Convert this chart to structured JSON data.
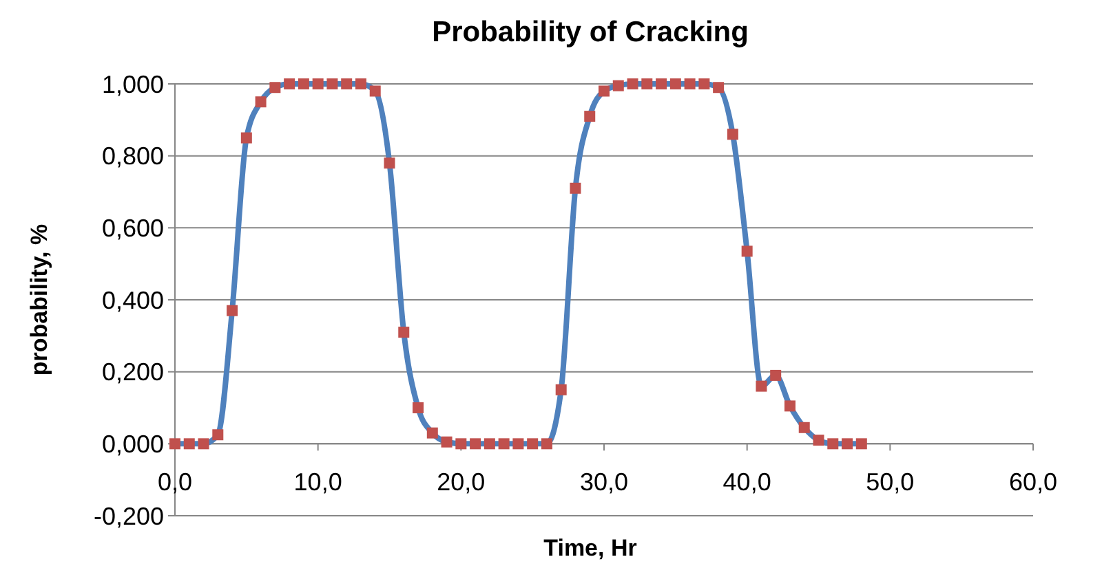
{
  "chart_data": {
    "type": "line",
    "title": "Probability of Cracking",
    "xlabel": "Time, Hr",
    "ylabel": "probability, %",
    "x": [
      0,
      1,
      2,
      3,
      4,
      5,
      6,
      7,
      8,
      9,
      10,
      11,
      12,
      13,
      14,
      15,
      16,
      17,
      18,
      19,
      20,
      21,
      22,
      23,
      24,
      25,
      26,
      27,
      28,
      29,
      30,
      31,
      32,
      33,
      34,
      35,
      36,
      37,
      38,
      39,
      40,
      41,
      42,
      43,
      44,
      45,
      46,
      47,
      48
    ],
    "series": [
      {
        "color": "#4f81bd",
        "marker": "none",
        "values": [
          0,
          0,
          0,
          0.025,
          0.37,
          0.85,
          0.95,
          0.99,
          1,
          1,
          1,
          1,
          1,
          1,
          0.98,
          0.78,
          0.31,
          0.1,
          0.03,
          0.005,
          0,
          0,
          0,
          0,
          0,
          0,
          0,
          0.15,
          0.71,
          0.91,
          0.98,
          0.995,
          1,
          1,
          1,
          1,
          1,
          1,
          0.99,
          0.86,
          0.535,
          0.16,
          0.19,
          0.105,
          0.045,
          0.01,
          0,
          0,
          0
        ]
      },
      {
        "type": "scatter",
        "color": "#c0504d",
        "marker": "square",
        "values": [
          0,
          0,
          0,
          0.025,
          0.37,
          0.85,
          0.95,
          0.99,
          1,
          1,
          1,
          1,
          1,
          1,
          0.98,
          0.78,
          0.31,
          0.1,
          0.03,
          0.005,
          0,
          0,
          0,
          0,
          0,
          0,
          0,
          0.15,
          0.71,
          0.91,
          0.98,
          0.995,
          1,
          1,
          1,
          1,
          1,
          1,
          0.99,
          0.86,
          0.535,
          0.16,
          0.19,
          0.105,
          0.045,
          0.01,
          0,
          0,
          0
        ]
      }
    ],
    "line_style": "solid",
    "xlim": [
      0,
      60
    ],
    "xticks": [
      {
        "value": 0,
        "label": "0,0"
      },
      {
        "value": 10,
        "label": "10,0"
      },
      {
        "value": 20,
        "label": "20,0"
      },
      {
        "value": 30,
        "label": "30,0"
      },
      {
        "value": 40,
        "label": "40,0"
      },
      {
        "value": 50,
        "label": "50,0"
      },
      {
        "value": 60,
        "label": "60,0"
      }
    ],
    "ylim": [
      -0.2,
      1
    ],
    "yticks": [
      {
        "value": -0.2,
        "label": "-0,200"
      },
      {
        "value": 0,
        "label": "0,000"
      },
      {
        "value": 0.2,
        "label": "0,200"
      },
      {
        "value": 0.4,
        "label": "0,400"
      },
      {
        "value": 0.6,
        "label": "0,600"
      },
      {
        "value": 0.8,
        "label": "0,800"
      },
      {
        "value": 1,
        "label": "1,000"
      }
    ],
    "grid": "y"
  }
}
